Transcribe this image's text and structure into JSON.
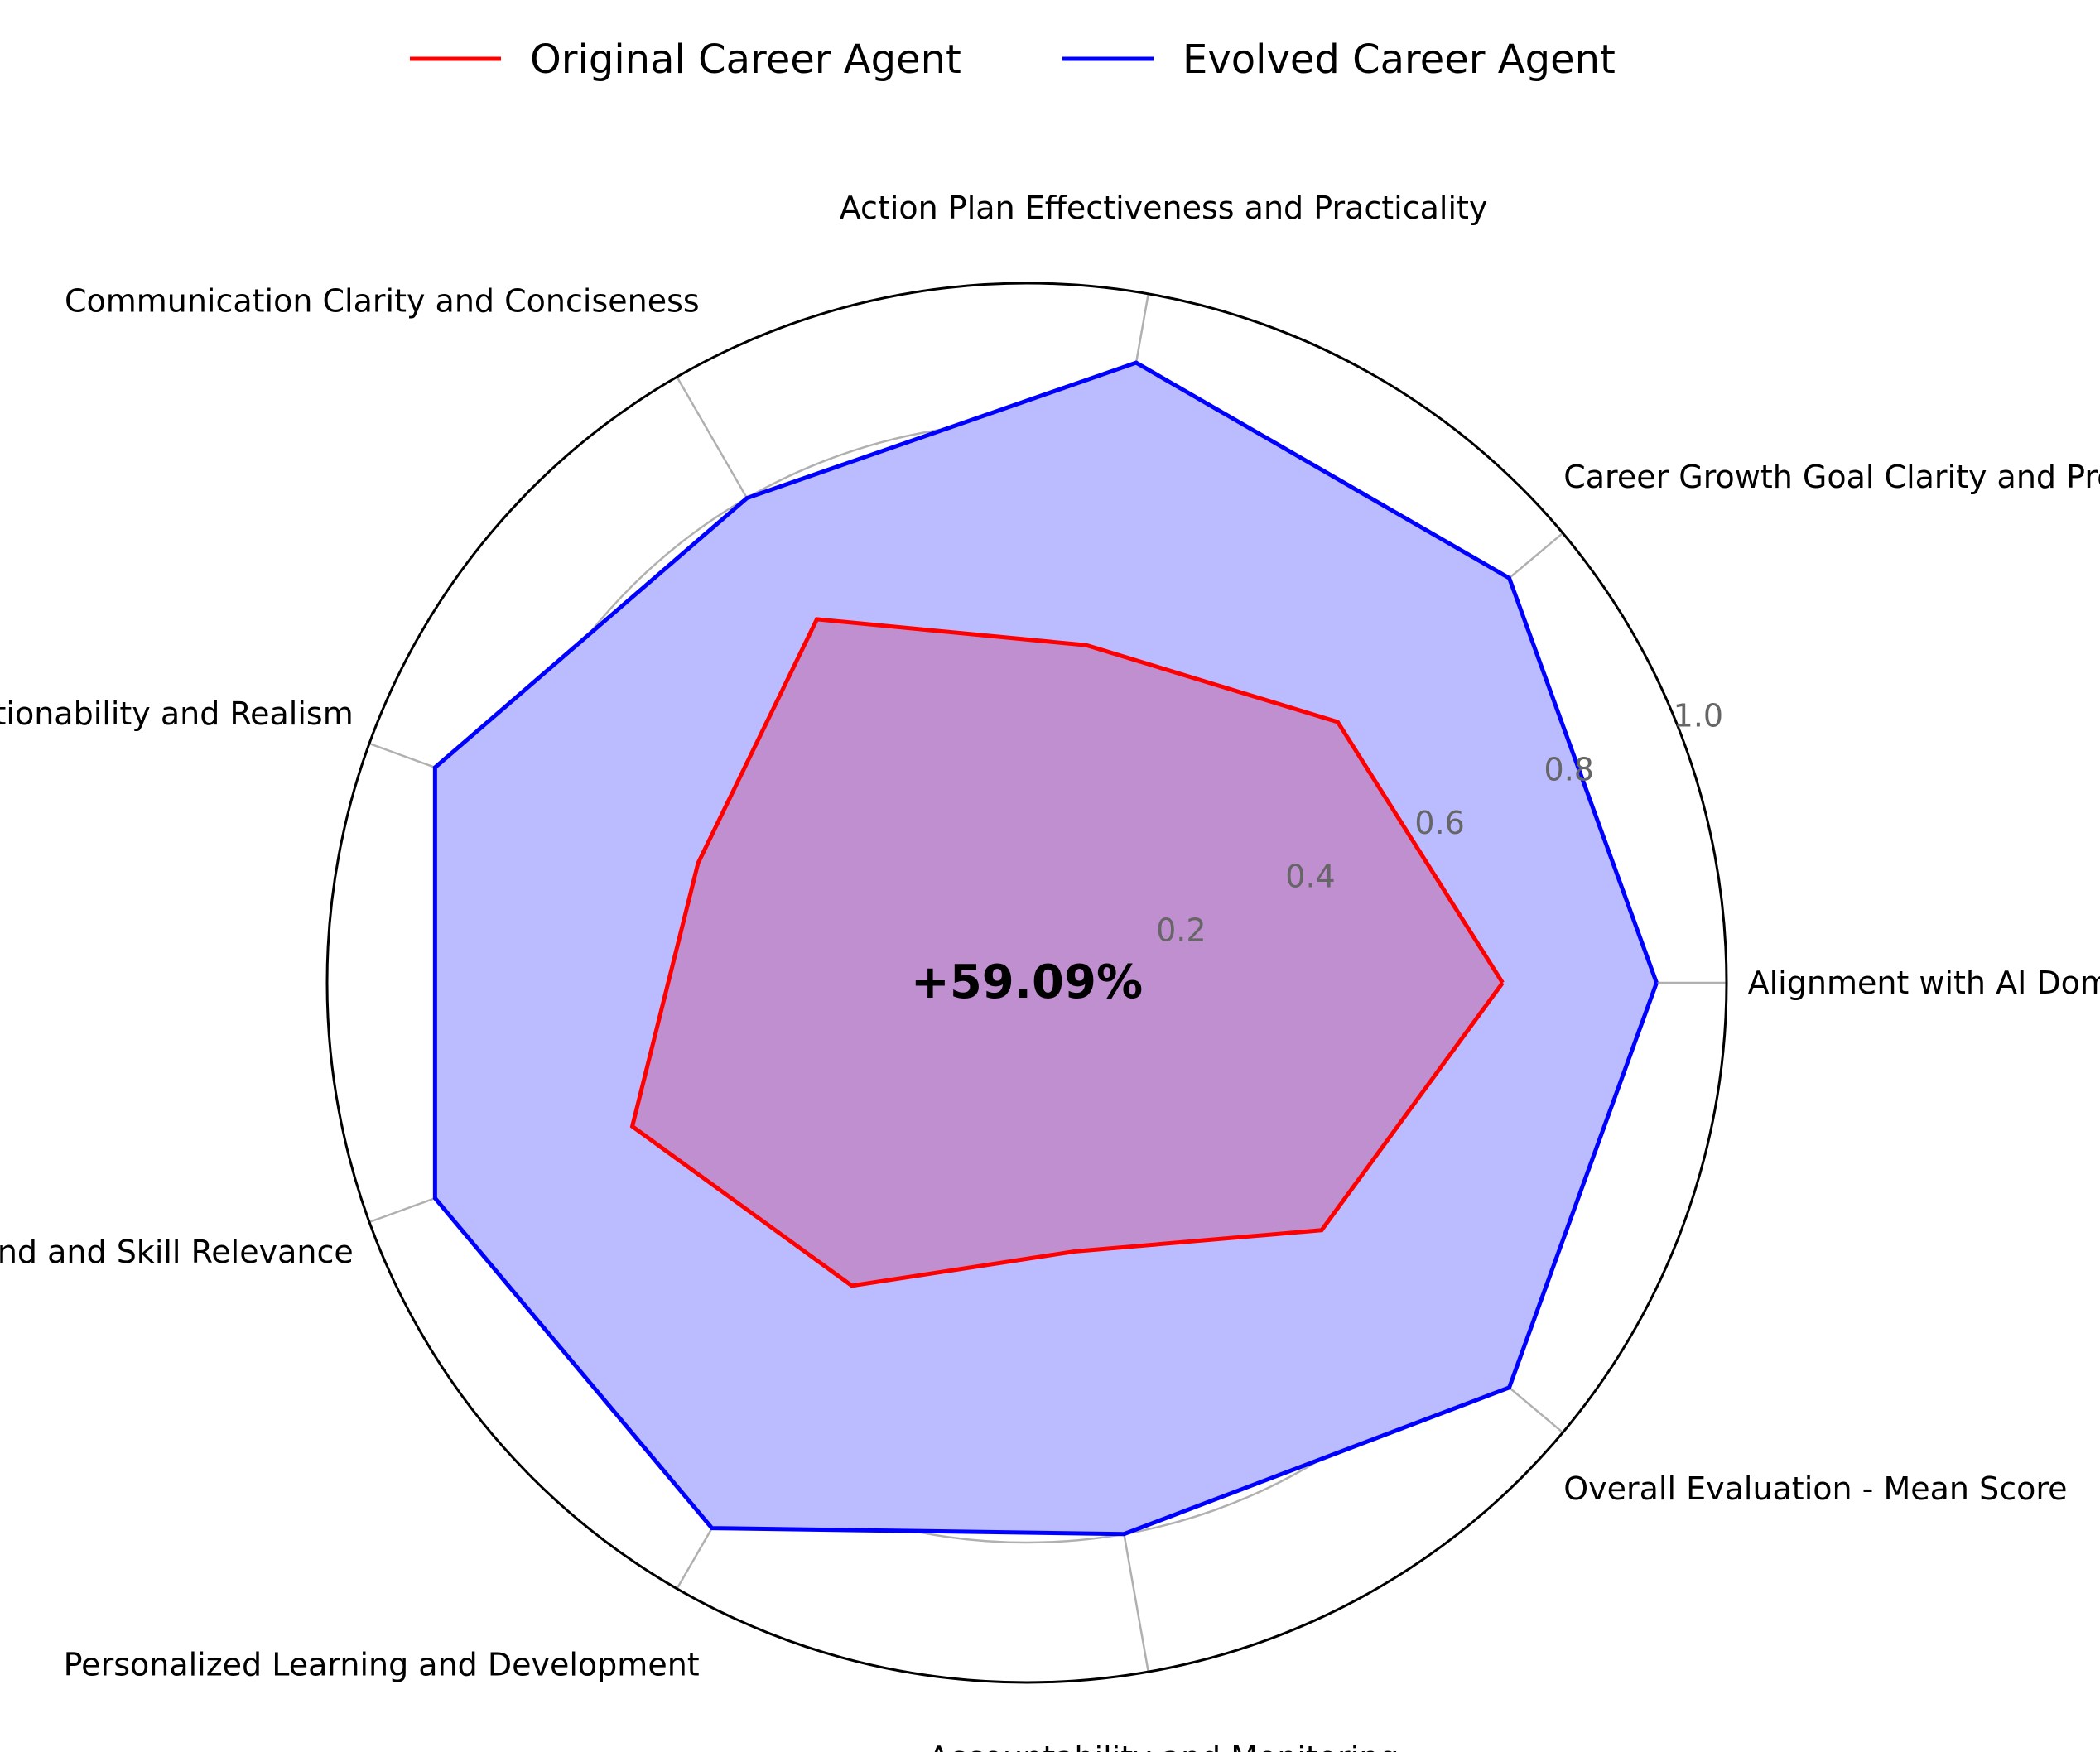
{
  "chart_data": {
    "type": "radar",
    "categories": [
      "Alignment with AI Domain Expertise",
      "Career Growth Goal Clarity and Precision",
      "Action Plan Effectiveness and Practicality",
      "Communication Clarity and Conciseness",
      "Actionability and Realism",
      "Industry Trend and Skill Relevance",
      "Personalized Learning and Development",
      "Accountability and Monitoring",
      "Overall Evaluation - Mean Score"
    ],
    "series": [
      {
        "name": "Original Career Agent",
        "color": "#ff0000",
        "values": [
          0.68,
          0.58,
          0.49,
          0.6,
          0.5,
          0.6,
          0.5,
          0.39,
          0.55
        ]
      },
      {
        "name": "Evolved Career Agent",
        "color": "#0000ff",
        "fill": "#bbbbff",
        "values": [
          0.9,
          0.9,
          0.9,
          0.8,
          0.9,
          0.9,
          0.9,
          0.8,
          0.9
        ]
      }
    ],
    "rlim": [
      0,
      1.0
    ],
    "r_ticks": [
      "0.2",
      "0.4",
      "0.6",
      "0.8",
      "1.0"
    ],
    "grid": true,
    "legend_position": "top-center",
    "annotation": "+59.09%"
  }
}
